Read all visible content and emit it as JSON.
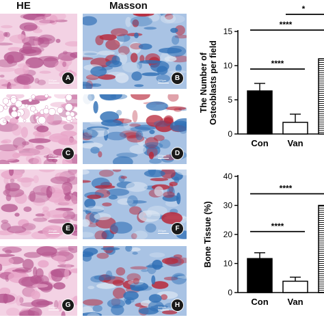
{
  "figure": {
    "columns": [
      {
        "header": "HE"
      },
      {
        "header": "Masson"
      }
    ],
    "panels": [
      {
        "label": "A",
        "stain": "he",
        "scale": "200μm"
      },
      {
        "label": "B",
        "stain": "masson",
        "scale": "200μm"
      },
      {
        "label": "C",
        "stain": "he",
        "scale": "200μm"
      },
      {
        "label": "D",
        "stain": "masson",
        "scale": "200μm"
      },
      {
        "label": "E",
        "stain": "he",
        "scale": "200μm"
      },
      {
        "label": "F",
        "stain": "masson",
        "scale": "200μm"
      },
      {
        "label": "G",
        "stain": "he",
        "scale": "200μm"
      },
      {
        "label": "H",
        "stain": "masson",
        "scale": "200μm"
      }
    ],
    "colors": {
      "he_pink": "#e8a6c9",
      "he_dark": "#b5558f",
      "masson_blue": "#2f6fb5",
      "masson_red": "#b8283a",
      "bar_black": "#000000"
    }
  },
  "chart_data": [
    {
      "type": "bar",
      "ylabel": "The Number of Osteoblasts per field",
      "categories": [
        "Con",
        "Van",
        ""
      ],
      "values": [
        6.3,
        1.7,
        11
      ],
      "errors": [
        1.1,
        1.2,
        0
      ],
      "fills": [
        "solid",
        "open",
        "hatched"
      ],
      "ylim": [
        0,
        15
      ],
      "yticks": [
        "0",
        "5",
        "10",
        "15"
      ],
      "significance": [
        {
          "from": 0,
          "to": 1,
          "label": "****",
          "y": 9.5
        },
        {
          "from": 0,
          "to": 2,
          "label": "****",
          "y": 15.2
        },
        {
          "from": 1,
          "to": 2,
          "label": "*",
          "y": 17.5
        }
      ]
    },
    {
      "type": "bar",
      "ylabel": "Bone Tissue (%)",
      "categories": [
        "Con",
        "Van",
        ""
      ],
      "values": [
        11.7,
        3.9,
        30
      ],
      "errors": [
        2.0,
        1.4,
        0
      ],
      "fills": [
        "solid",
        "open",
        "hatched"
      ],
      "ylim": [
        0,
        40
      ],
      "yticks": [
        "0",
        "10",
        "20",
        "30",
        "40"
      ],
      "significance": [
        {
          "from": 0,
          "to": 1,
          "label": "****",
          "y": 21
        },
        {
          "from": 0,
          "to": 2,
          "label": "****",
          "y": 34
        }
      ]
    }
  ]
}
